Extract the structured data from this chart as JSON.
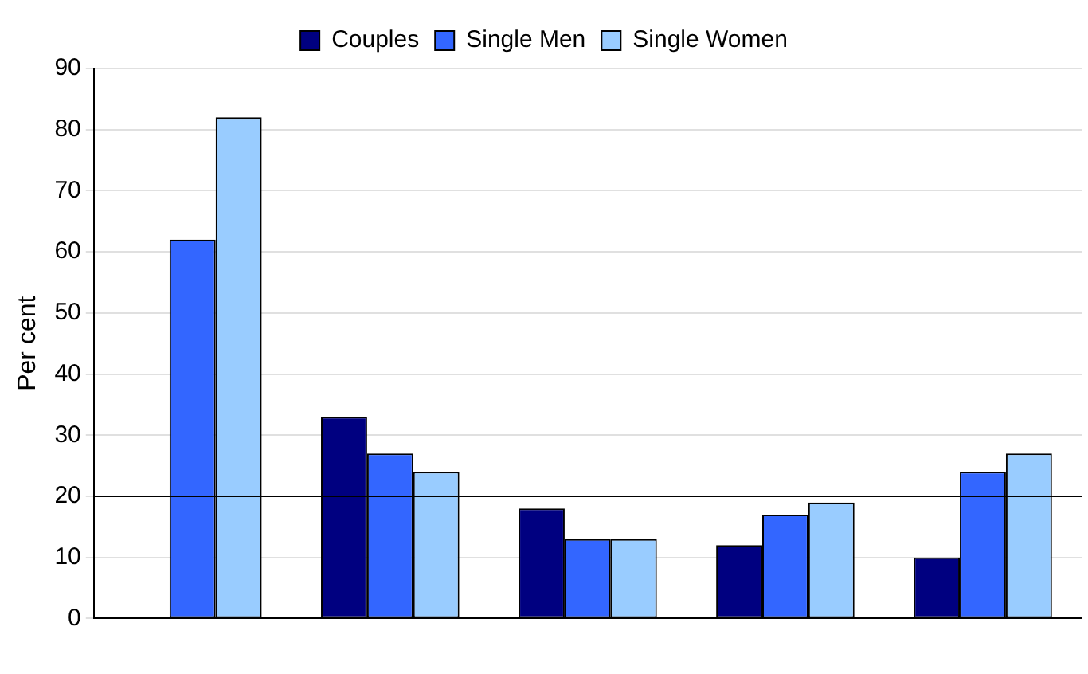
{
  "chart_data": {
    "type": "bar",
    "ylabel": "Per cent",
    "categories": [
      null,
      null,
      null,
      null,
      null
    ],
    "series": [
      {
        "name": "Couples",
        "color": "#000080",
        "values": [
          null,
          33,
          18,
          12,
          10
        ]
      },
      {
        "name": "Single Men",
        "color": "#3366ff",
        "values": [
          62,
          27,
          13,
          17,
          24
        ]
      },
      {
        "name": "Single Women",
        "color": "#99ccff",
        "values": [
          82,
          24,
          13,
          19,
          27
        ]
      }
    ],
    "ylim": [
      0,
      90
    ],
    "yticks": [
      0,
      10,
      20,
      30,
      40,
      50,
      60,
      70,
      80,
      90
    ],
    "grid": "y",
    "legend": "top",
    "ref_lines": [
      {
        "axis": "y",
        "value": 20,
        "color": "#000000"
      }
    ]
  }
}
